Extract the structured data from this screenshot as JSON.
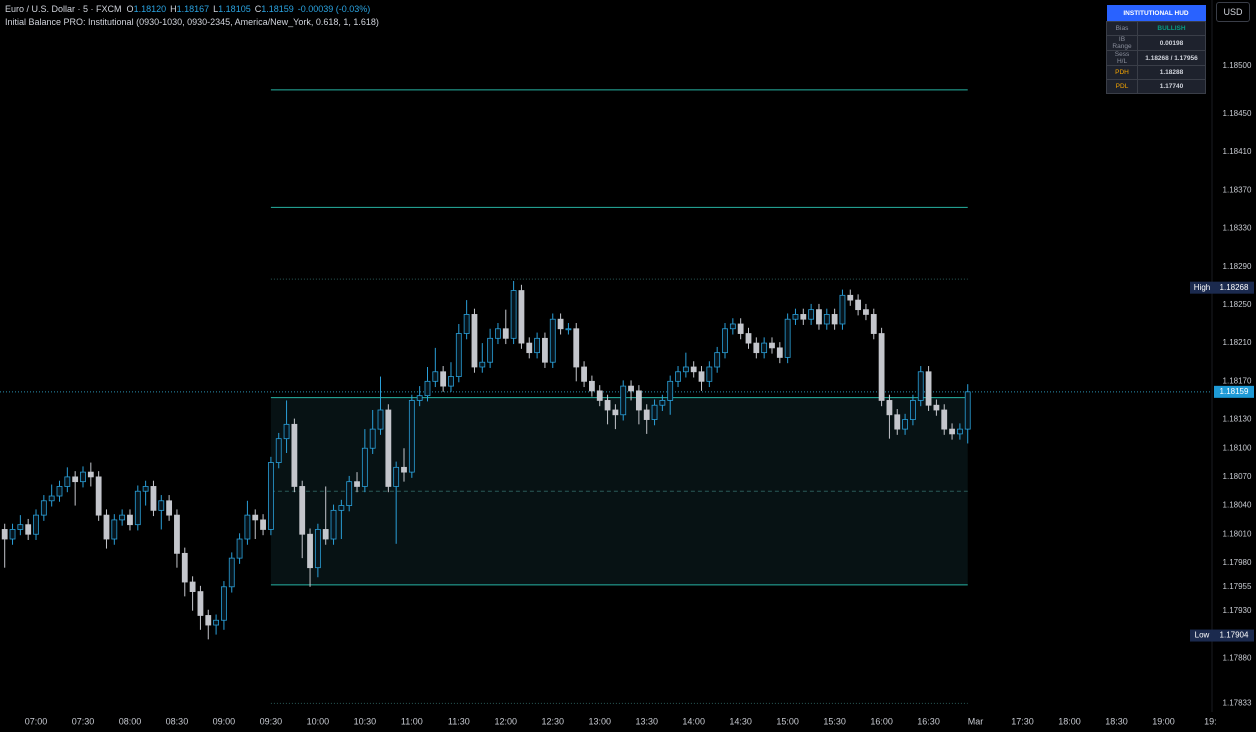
{
  "header": {
    "symbol": "Euro / U.S. Dollar · 5 · FXCM",
    "ohlc": [
      {
        "label": "O",
        "value": "1.18120"
      },
      {
        "label": "H",
        "value": "1.18167"
      },
      {
        "label": "L",
        "value": "1.18105"
      },
      {
        "label": "C",
        "value": "1.18159"
      }
    ],
    "change": "-0.00039 (-0.03%)",
    "indicator": "Initial Balance PRO: Institutional (0930-1030, 0930-2345, America/New_York, 0.618, 1, 1.618)",
    "currency": "USD"
  },
  "hud": {
    "title": "INSTITUTIONAL HUD",
    "rows": [
      [
        "Bias",
        "BULLISH"
      ],
      [
        "IB Range",
        "0.00198"
      ],
      [
        "Sess H/L",
        "1.18268 / 1.17956"
      ],
      [
        "PDH",
        "1.18288"
      ],
      [
        "PDL",
        "1.17740"
      ]
    ]
  },
  "chart_data": {
    "type": "candlestick",
    "up_color": "#2a9fd8",
    "down_color": "#c4c6cc",
    "level_color": "#27b3a3",
    "ylim": [
      1.17824,
      1.18569
    ],
    "xlim": [
      -0.6,
      154.2
    ],
    "grid": false,
    "yticks": [
      {
        "value": 1.185,
        "label": "1.18500"
      },
      {
        "value": 1.1845,
        "label": "1.18450"
      },
      {
        "value": 1.1841,
        "label": "1.18410"
      },
      {
        "value": 1.1837,
        "label": "1.18370"
      },
      {
        "value": 1.1833,
        "label": "1.18330"
      },
      {
        "value": 1.1829,
        "label": "1.18290"
      },
      {
        "value": 1.1825,
        "label": "1.18250"
      },
      {
        "value": 1.1821,
        "label": "1.18210"
      },
      {
        "value": 1.1817,
        "label": "1.18170"
      },
      {
        "value": 1.1813,
        "label": "1.18130"
      },
      {
        "value": 1.181,
        "label": "1.18100"
      },
      {
        "value": 1.1807,
        "label": "1.18070"
      },
      {
        "value": 1.1804,
        "label": "1.18040"
      },
      {
        "value": 1.1801,
        "label": "1.18010"
      },
      {
        "value": 1.1798,
        "label": "1.17980"
      },
      {
        "value": 1.17955,
        "label": "1.17955"
      },
      {
        "value": 1.1793,
        "label": "1.17930"
      },
      {
        "value": 1.1788,
        "label": "1.17880"
      },
      {
        "value": 1.17833,
        "label": "1.17833"
      }
    ],
    "xticks": [
      {
        "value": 4,
        "label": "07:00"
      },
      {
        "value": 10,
        "label": "07:30"
      },
      {
        "value": 16,
        "label": "08:00"
      },
      {
        "value": 22,
        "label": "08:30"
      },
      {
        "value": 28,
        "label": "09:00"
      },
      {
        "value": 34,
        "label": "09:30"
      },
      {
        "value": 40,
        "label": "10:00"
      },
      {
        "value": 46,
        "label": "10:30"
      },
      {
        "value": 52,
        "label": "11:00"
      },
      {
        "value": 58,
        "label": "11:30"
      },
      {
        "value": 64,
        "label": "12:00"
      },
      {
        "value": 70,
        "label": "12:30"
      },
      {
        "value": 76,
        "label": "13:00"
      },
      {
        "value": 82,
        "label": "13:30"
      },
      {
        "value": 88,
        "label": "14:00"
      },
      {
        "value": 94,
        "label": "14:30"
      },
      {
        "value": 100,
        "label": "15:00"
      },
      {
        "value": 106,
        "label": "15:30"
      },
      {
        "value": 112,
        "label": "16:00"
      },
      {
        "value": 118,
        "label": "16:30"
      },
      {
        "value": 124,
        "label": "Mar"
      },
      {
        "value": 130,
        "label": "17:30"
      },
      {
        "value": 136,
        "label": "18:00"
      },
      {
        "value": 142,
        "label": "18:30"
      },
      {
        "value": 148,
        "label": "19:00"
      },
      {
        "value": 154,
        "label": "19:"
      }
    ],
    "candles": {
      "open": [
        1.18015,
        1.18005,
        1.18015,
        1.1802,
        1.1801,
        1.1803,
        1.18045,
        1.1805,
        1.1806,
        1.1807,
        1.18065,
        1.18075,
        1.1807,
        1.1803,
        1.18005,
        1.18025,
        1.1803,
        1.1802,
        1.18055,
        1.1806,
        1.18035,
        1.18045,
        1.1803,
        1.1799,
        1.1796,
        1.1795,
        1.17925,
        1.17915,
        1.1792,
        1.17955,
        1.17985,
        1.18005,
        1.1803,
        1.18025,
        1.18015,
        1.18085,
        1.1811,
        1.18125,
        1.1806,
        1.1801,
        1.17975,
        1.18015,
        1.18005,
        1.18035,
        1.1804,
        1.18065,
        1.1806,
        1.181,
        1.1812,
        1.1814,
        1.1806,
        1.1808,
        1.18075,
        1.1815,
        1.18155,
        1.1817,
        1.1818,
        1.18165,
        1.18175,
        1.1822,
        1.1824,
        1.18185,
        1.1819,
        1.18215,
        1.18225,
        1.18215,
        1.18265,
        1.1821,
        1.182,
        1.18215,
        1.1819,
        1.18235,
        1.18225,
        1.18225,
        1.18185,
        1.1817,
        1.1816,
        1.1815,
        1.1814,
        1.18135,
        1.18165,
        1.1816,
        1.1814,
        1.1813,
        1.18145,
        1.1815,
        1.1817,
        1.1818,
        1.18185,
        1.1818,
        1.1817,
        1.18185,
        1.182,
        1.18225,
        1.1823,
        1.1822,
        1.1821,
        1.182,
        1.1821,
        1.18205,
        1.18195,
        1.18235,
        1.1824,
        1.18235,
        1.18245,
        1.1823,
        1.1824,
        1.1823,
        1.1826,
        1.18255,
        1.18245,
        1.1824,
        1.1822,
        1.1815,
        1.18135,
        1.1812,
        1.1813,
        1.1815,
        1.1818,
        1.18145,
        1.1814,
        1.1812,
        1.18115,
        1.1812
      ],
      "high": [
        1.18021,
        1.18021,
        1.1803,
        1.18026,
        1.18036,
        1.18051,
        1.18062,
        1.18066,
        1.1808,
        1.18076,
        1.18081,
        1.18085,
        1.18076,
        1.18036,
        1.18031,
        1.18036,
        1.18036,
        1.18061,
        1.18066,
        1.18066,
        1.18051,
        1.18051,
        1.18036,
        1.17996,
        1.17966,
        1.17956,
        1.17931,
        1.17926,
        1.17961,
        1.17991,
        1.18011,
        1.18045,
        1.18036,
        1.18031,
        1.18091,
        1.18116,
        1.1815,
        1.18131,
        1.18066,
        1.18016,
        1.18021,
        1.1806,
        1.18041,
        1.18046,
        1.18071,
        1.18075,
        1.1812,
        1.1814,
        1.18175,
        1.18146,
        1.18086,
        1.181,
        1.18156,
        1.18165,
        1.18185,
        1.18205,
        1.18186,
        1.1819,
        1.1823,
        1.18255,
        1.18246,
        1.1821,
        1.18225,
        1.18231,
        1.18245,
        1.18275,
        1.18271,
        1.18216,
        1.18221,
        1.18221,
        1.18241,
        1.18241,
        1.18231,
        1.18231,
        1.18191,
        1.18176,
        1.18166,
        1.18156,
        1.18146,
        1.18171,
        1.18171,
        1.18166,
        1.18146,
        1.18151,
        1.18156,
        1.18176,
        1.18186,
        1.182,
        1.18191,
        1.18186,
        1.18191,
        1.18206,
        1.18231,
        1.18236,
        1.18236,
        1.18226,
        1.18216,
        1.18216,
        1.18216,
        1.18211,
        1.18241,
        1.18246,
        1.18246,
        1.18251,
        1.18251,
        1.18246,
        1.18246,
        1.18266,
        1.18266,
        1.18261,
        1.18251,
        1.18246,
        1.18226,
        1.18156,
        1.18141,
        1.18136,
        1.18156,
        1.18186,
        1.18186,
        1.18151,
        1.18146,
        1.18126,
        1.18126,
        1.18167
      ],
      "low": [
        1.17975,
        1.17999,
        1.18009,
        1.18004,
        1.18004,
        1.18024,
        1.18039,
        1.18044,
        1.18054,
        1.1804,
        1.18059,
        1.1806,
        1.18024,
        1.17995,
        1.17999,
        1.18019,
        1.18014,
        1.18014,
        1.1804,
        1.18029,
        1.18015,
        1.18024,
        1.17975,
        1.17945,
        1.1793,
        1.1791,
        1.179,
        1.17905,
        1.1791,
        1.17949,
        1.17979,
        1.17999,
        1.18005,
        1.18009,
        1.18009,
        1.18079,
        1.18095,
        1.18054,
        1.17985,
        1.17955,
        1.17965,
        1.17999,
        1.17999,
        1.18005,
        1.18034,
        1.18054,
        1.18054,
        1.18094,
        1.18114,
        1.18054,
        1.18,
        1.18065,
        1.18069,
        1.18144,
        1.18149,
        1.18164,
        1.18159,
        1.18159,
        1.18169,
        1.18214,
        1.18179,
        1.18179,
        1.18184,
        1.18209,
        1.18209,
        1.18209,
        1.18204,
        1.18194,
        1.18194,
        1.18184,
        1.18184,
        1.18219,
        1.18219,
        1.1817,
        1.18164,
        1.18154,
        1.18144,
        1.18125,
        1.1812,
        1.18129,
        1.1815,
        1.18125,
        1.18115,
        1.18124,
        1.18139,
        1.18135,
        1.18164,
        1.18174,
        1.18174,
        1.1816,
        1.18164,
        1.18179,
        1.18194,
        1.18219,
        1.18214,
        1.18204,
        1.18194,
        1.18194,
        1.18199,
        1.18189,
        1.18189,
        1.18229,
        1.18229,
        1.18229,
        1.18224,
        1.18224,
        1.18224,
        1.18224,
        1.18249,
        1.18239,
        1.18234,
        1.18214,
        1.18144,
        1.1811,
        1.18114,
        1.18114,
        1.18124,
        1.18144,
        1.18139,
        1.18134,
        1.18114,
        1.18109,
        1.18109,
        1.18105
      ],
      "close": [
        1.18005,
        1.18015,
        1.1802,
        1.1801,
        1.1803,
        1.18045,
        1.1805,
        1.1806,
        1.1807,
        1.18065,
        1.18075,
        1.1807,
        1.1803,
        1.18005,
        1.18025,
        1.1803,
        1.1802,
        1.18055,
        1.1806,
        1.18035,
        1.18045,
        1.1803,
        1.1799,
        1.1796,
        1.1795,
        1.17925,
        1.17915,
        1.1792,
        1.17955,
        1.17985,
        1.18005,
        1.1803,
        1.18025,
        1.18015,
        1.18085,
        1.1811,
        1.18125,
        1.1806,
        1.1801,
        1.17975,
        1.18015,
        1.18005,
        1.18035,
        1.1804,
        1.18065,
        1.1806,
        1.181,
        1.1812,
        1.1814,
        1.1806,
        1.1808,
        1.18075,
        1.1815,
        1.18155,
        1.1817,
        1.1818,
        1.18165,
        1.18175,
        1.1822,
        1.1824,
        1.18185,
        1.1819,
        1.18215,
        1.18225,
        1.18215,
        1.18265,
        1.1821,
        1.182,
        1.18215,
        1.1819,
        1.18235,
        1.18225,
        1.18225,
        1.18185,
        1.1817,
        1.1816,
        1.1815,
        1.1814,
        1.18135,
        1.18165,
        1.1816,
        1.1814,
        1.1813,
        1.18145,
        1.1815,
        1.1817,
        1.1818,
        1.18185,
        1.1818,
        1.1817,
        1.18185,
        1.182,
        1.18225,
        1.1823,
        1.1822,
        1.1821,
        1.182,
        1.1821,
        1.18205,
        1.18195,
        1.18235,
        1.1824,
        1.18235,
        1.18245,
        1.1823,
        1.1824,
        1.1823,
        1.1826,
        1.18255,
        1.18245,
        1.1824,
        1.1822,
        1.1815,
        1.18135,
        1.1812,
        1.1813,
        1.1815,
        1.1818,
        1.18145,
        1.1814,
        1.1812,
        1.18115,
        1.1812,
        1.18159
      ]
    },
    "levels": [
      {
        "value": 1.18475,
        "style": "solid"
      },
      {
        "value": 1.18352,
        "style": "solid"
      },
      {
        "value": 1.18277,
        "style": "dotted"
      },
      {
        "value": 1.18153,
        "style": "solid"
      },
      {
        "value": 1.18055,
        "style": "dashed"
      },
      {
        "value": 1.17957,
        "style": "solid"
      },
      {
        "value": 1.17833,
        "style": "dotted"
      }
    ],
    "levels_from": 34,
    "levels_to": 123,
    "price_labels": [
      {
        "text": "High",
        "value": 1.18268,
        "label": "1.18268"
      },
      {
        "text": "Low",
        "value": 1.17904,
        "label": "1.17904"
      }
    ],
    "last_price": {
      "value": 1.18159,
      "label": "1.18159"
    }
  }
}
